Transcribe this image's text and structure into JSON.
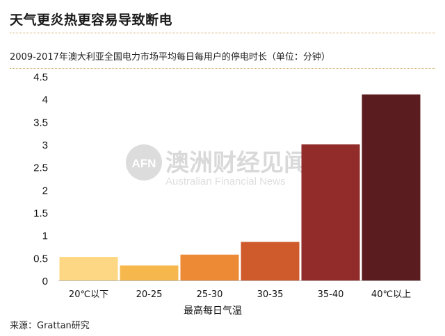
{
  "header": {
    "title": "天气更炎热更容易导致断电",
    "subtitle": "2009-2017年澳大利亚全国电力市场平均每日每用户的停电时长（单位：分钟）"
  },
  "footer": {
    "source": "来源：Grattan研究"
  },
  "watermark": {
    "logo": "AFN",
    "name_cn": "澳洲财经见闻",
    "name_en": "Australian Financial News"
  },
  "colors": {
    "bars": [
      "#fdd783",
      "#f6b84c",
      "#ec8a35",
      "#cf5a2c",
      "#922c2a",
      "#5b1c1f"
    ],
    "rule": "#c9a45c"
  },
  "chart_data": {
    "type": "bar",
    "title": "",
    "xlabel": "最高每日气温",
    "ylabel": "",
    "categories": [
      "20℃以下",
      "20-25",
      "25-30",
      "30-35",
      "35-40",
      "40℃以上"
    ],
    "values": [
      0.52,
      0.33,
      0.57,
      0.85,
      3.0,
      4.1
    ],
    "ylim": [
      0,
      4.5
    ],
    "yticks": [
      "0",
      "0.5",
      "1",
      "1.5",
      "2",
      "2.5",
      "3",
      "3.5",
      "4",
      "4.5"
    ],
    "grid": false,
    "legend": "none"
  }
}
